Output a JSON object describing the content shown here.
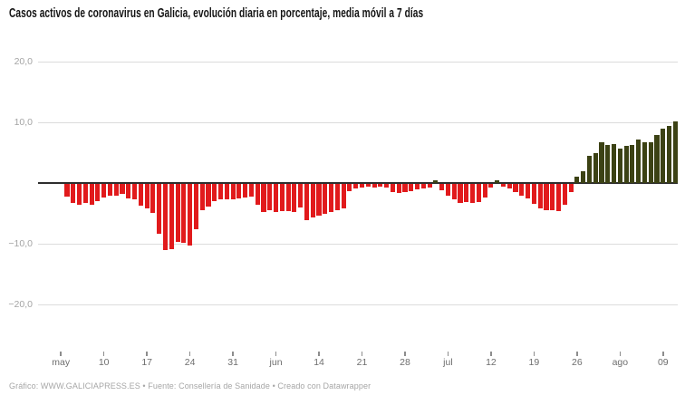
{
  "title": "Casos activos de coronavirus en Galicia, evolución diaria en porcentaje, media móvil a 7 días",
  "footer": "Gráfico: WWW.GALICIAPRESS.ES • Fuente: Consellería de Sanidade • Creado con Datawrapper",
  "colors": {
    "background": "#ffffff",
    "title_text": "#141414",
    "positive_bar": "#3c4214",
    "negative_bar": "#e11a1c",
    "zero_line": "#2e2e2e",
    "gridline": "#dcdcdc",
    "y_axis_text": "#a4a4a4",
    "x_axis_text": "#6e6e6e",
    "footer_text": "#a6a6a6"
  },
  "chart_data": {
    "type": "bar",
    "title": "Casos activos de coronavirus en Galicia, evolución diaria en porcentaje, media móvil a 7 días",
    "xlabel": "",
    "ylabel": "",
    "ylim": [
      -20,
      20
    ],
    "grid": "horizontal",
    "baseline": 0,
    "legend": "none",
    "bar_unit": "day",
    "tick_interval_bars": 7,
    "first_tick_offset_bars": -1,
    "y_ticks": [
      {
        "value": 20,
        "label": "20,0"
      },
      {
        "value": 10,
        "label": "10,0"
      },
      {
        "value": -10,
        "label": "−10,0"
      },
      {
        "value": -20,
        "label": "−20,0"
      }
    ],
    "x_ticks": [
      "may",
      "10",
      "17",
      "24",
      "31",
      "jun",
      "14",
      "21",
      "28",
      "jul",
      "12",
      "19",
      "26",
      "ago",
      "09"
    ],
    "values": [
      -2.1,
      -3.1,
      -3.4,
      -3.2,
      -3.4,
      -2.9,
      -2.2,
      -1.9,
      -1.9,
      -1.7,
      -2.4,
      -2.6,
      -3.6,
      -4.1,
      -4.8,
      -8.2,
      -10.9,
      -10.7,
      -9.6,
      -9.7,
      -10.2,
      -7.4,
      -4.4,
      -3.7,
      -2.9,
      -2.5,
      -2.6,
      -2.5,
      -2.4,
      -2.2,
      -2.1,
      -3.4,
      -4.6,
      -4.4,
      -4.6,
      -4.5,
      -4.5,
      -4.6,
      -3.9,
      -6.0,
      -5.6,
      -5.3,
      -5.0,
      -4.7,
      -4.3,
      -4.0,
      -1.2,
      -0.7,
      -0.6,
      -0.45,
      -0.6,
      -0.45,
      -0.6,
      -1.4,
      -1.5,
      -1.4,
      -1.2,
      -0.9,
      -0.7,
      -0.6,
      0.4,
      -1.1,
      -1.9,
      -2.6,
      -3.1,
      -3.0,
      -3.2,
      -3.0,
      -2.2,
      -0.6,
      0.5,
      -0.5,
      -0.8,
      -1.4,
      -2.0,
      -2.4,
      -3.3,
      -4.0,
      -4.3,
      -4.4,
      -4.5,
      -3.5,
      -1.4,
      1.0,
      2.0,
      4.5,
      5.0,
      6.8,
      6.3,
      6.5,
      5.7,
      6.2,
      6.3,
      7.2,
      6.8,
      6.7,
      7.9,
      9.0,
      9.4,
      10.2
    ]
  }
}
